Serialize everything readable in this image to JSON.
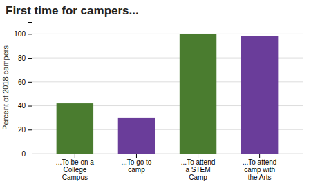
{
  "chart_data": {
    "type": "bar",
    "title": "First time for campers...",
    "categories": [
      "...To be on a\nCollege\nCampus",
      "...To go to\ncamp",
      "...To attend\na STEM\nCamp",
      "...To attend\ncamp with\nthe Arts"
    ],
    "values": [
      42,
      30,
      100,
      98
    ],
    "colors": [
      "#4a7c2f",
      "#6a3d9a",
      "#4a7c2f",
      "#6a3d9a"
    ],
    "ylabel": "Percent of 2018 campers",
    "ylim": [
      0,
      110
    ],
    "yticks": [
      0,
      20,
      40,
      60,
      80,
      100
    ],
    "grid": true
  }
}
